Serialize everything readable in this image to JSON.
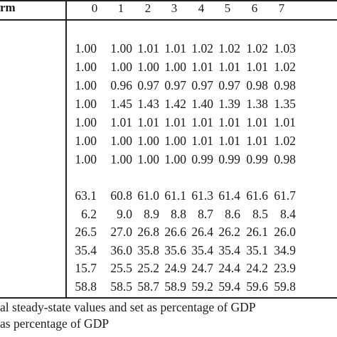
{
  "header": {
    "label": "rm",
    "columns": [
      "0",
      "1",
      "2",
      "3",
      "4",
      "5",
      "6",
      "7"
    ]
  },
  "ratio_rows": [
    [
      "1.00",
      "1.00",
      "1.01",
      "1.01",
      "1.02",
      "1.02",
      "1.02",
      "1.03"
    ],
    [
      "1.00",
      "1.00",
      "1.00",
      "1.00",
      "1.01",
      "1.01",
      "1.01",
      "1.02"
    ],
    [
      "1.00",
      "0.96",
      "0.97",
      "0.97",
      "0.97",
      "0.97",
      "0.98",
      "0.98"
    ],
    [
      "1.00",
      "1.45",
      "1.43",
      "1.42",
      "1.40",
      "1.39",
      "1.38",
      "1.35"
    ],
    [
      "1.00",
      "1.01",
      "1.01",
      "1.01",
      "1.01",
      "1.01",
      "1.01",
      "1.01"
    ],
    [
      "1.00",
      "1.00",
      "1.00",
      "1.00",
      "1.01",
      "1.01",
      "1.01",
      "1.02"
    ],
    [
      "1.00",
      "1.00",
      "1.00",
      "1.00",
      "0.99",
      "0.99",
      "0.99",
      "0.98"
    ]
  ],
  "pct_rows": [
    [
      "63.1",
      "60.8",
      "61.0",
      "61.1",
      "61.3",
      "61.4",
      "61.6",
      "61.7"
    ],
    [
      "6.2",
      "9.0",
      "8.9",
      "8.8",
      "8.7",
      "8.6",
      "8.5",
      "8.4"
    ],
    [
      "26.5",
      "27.0",
      "26.8",
      "26.6",
      "26.4",
      "26.2",
      "26.1",
      "26.0"
    ],
    [
      "35.4",
      "36.0",
      "35.8",
      "35.6",
      "35.4",
      "35.4",
      "35.1",
      "34.9"
    ],
    [
      "15.7",
      "25.5",
      "25.2",
      "24.9",
      "24.7",
      "24.4",
      "24.2",
      "23.9"
    ],
    [
      "58.8",
      "58.5",
      "58.7",
      "58.9",
      "59.2",
      "59.4",
      "59.6",
      "59.8"
    ]
  ],
  "notes": [
    "al steady-state values and set as percentage of GDP",
    "as percentage of GDP"
  ]
}
